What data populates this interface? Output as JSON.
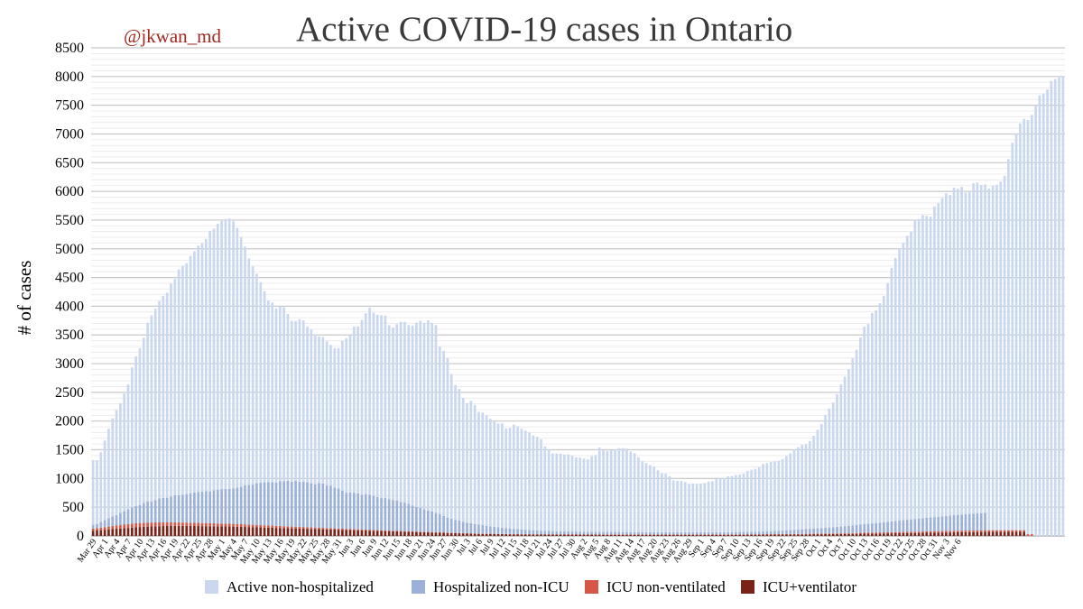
{
  "handle": "@jkwan_md",
  "chart_data": {
    "type": "bar",
    "stacked": true,
    "title": "Active COVID-19 cases in Ontario",
    "ylabel": "# of cases",
    "xlabel": "",
    "ylim": [
      0,
      8500
    ],
    "yticks": [
      0,
      500,
      1000,
      1500,
      2000,
      2500,
      3000,
      3500,
      4000,
      4500,
      5000,
      5500,
      6000,
      6500,
      7000,
      7500,
      8000,
      8500
    ],
    "grid": true,
    "legend_position": "bottom",
    "x_start": "Mar 29",
    "x_end": "Nov 6",
    "x_tick_labels": [
      "Mar 29",
      "Apr 1",
      "Apr 4",
      "Apr 7",
      "Apr 10",
      "Apr 13",
      "Apr 16",
      "Apr 19",
      "Apr 22",
      "Apr 25",
      "Apr 28",
      "May 1",
      "May 4",
      "May 7",
      "May 10",
      "May 13",
      "May 16",
      "May 19",
      "May 22",
      "May 25",
      "May 28",
      "May 31",
      "Jun 3",
      "Jun 6",
      "Jun 9",
      "Jun 12",
      "Jun 15",
      "Jun 18",
      "Jun 21",
      "Jun 24",
      "Jun 27",
      "Jun 30",
      "Jul 3",
      "Jul 6",
      "Jul 9",
      "Jul 12",
      "Jul 15",
      "Jul 18",
      "Jul 21",
      "Jul 24",
      "Jul 27",
      "Jul 30",
      "Aug 2",
      "Aug 5",
      "Aug 8",
      "Aug 11",
      "Aug 14",
      "Aug 17",
      "Aug 20",
      "Aug 23",
      "Aug 26",
      "Aug 29",
      "Sep 1",
      "Sep 4",
      "Sep 7",
      "Sep 10",
      "Sep 13",
      "Sep 16",
      "Sep 19",
      "Sep 22",
      "Sep 25",
      "Sep 28",
      "Oct 1",
      "Oct 4",
      "Oct 7",
      "Oct 10",
      "Oct 13",
      "Oct 16",
      "Oct 19",
      "Oct 22",
      "Oct 25",
      "Oct 28",
      "Oct 31",
      "Nov 3",
      "Nov 6"
    ],
    "colors": {
      "Active non-hospitalized": "#c9d8ef",
      "Hospitalized non-ICU": "#9bb1da",
      "ICU non-ventilated": "#d65747",
      "ICU+ventilator": "#7b2218"
    },
    "series": [
      {
        "name": "Active non-hospitalized",
        "values": [
          1125,
          1115,
          1212,
          1384,
          1561,
          1707,
          1827,
          1906,
          2050,
          2172,
          2440,
          2603,
          2733,
          2877,
          3112,
          3244,
          3331,
          3435,
          3515,
          3571,
          3705,
          3766,
          3931,
          3983,
          4020,
          4131,
          4203,
          4288,
          4326,
          4393,
          4539,
          4554,
          4630,
          4669,
          4702,
          4706,
          4651,
          4519,
          4347,
          4156,
          3946,
          3801,
          3649,
          3491,
          3328,
          3163,
          3128,
          3037,
          3048,
          3032,
          2905,
          2800,
          2782,
          2833,
          2806,
          2708,
          2679,
          2616,
          2553,
          2550,
          2511,
          2448,
          2427,
          2442,
          2609,
          2687,
          2734,
          2891,
          2906,
          3045,
          3151,
          3262,
          3184,
          3174,
          3186,
          3177,
          3033,
          3003,
          3075,
          3141,
          3148,
          3115,
          3136,
          3210,
          3257,
          3242,
          3311,
          3285,
          3273,
          2919,
          2873,
          2774,
          2524,
          2349,
          2290,
          2157,
          2081,
          2132,
          2071,
          1963,
          1959,
          1923,
          1872,
          1829,
          1806,
          1816,
          1734,
          1753,
          1816,
          1792,
          1758,
          1728,
          1700,
          1652,
          1633,
          1593,
          1470,
          1424,
          1354,
          1354,
          1352,
          1338,
          1341,
          1320,
          1291,
          1288,
          1272,
          1258,
          1312,
          1331,
          1465,
          1420,
          1409,
          1423,
          1437,
          1457,
          1458,
          1450,
          1403,
          1371,
          1302,
          1235,
          1202,
          1167,
          1143,
          1080,
          1025,
          1017,
          972,
          905,
          895,
          894,
          876,
          840,
          847,
          842,
          844,
          857,
          882,
          889,
          919,
          942,
          940,
          971,
          975,
          994,
          1000,
          1012,
          1057,
          1076,
          1094,
          1120,
          1174,
          1186,
          1203,
          1209,
          1220,
          1243,
          1293,
          1340,
          1403,
          1436,
          1474,
          1478,
          1529,
          1617,
          1716,
          1813,
          1962,
          2071,
          2169,
          2309,
          2474,
          2603,
          2725,
          2908,
          3050,
          3259,
          3439,
          3479,
          3662,
          3703,
          3823,
          3939,
          4151,
          4413,
          4580,
          4745,
          4829,
          4947,
          5010,
          5212,
          5217,
          5277,
          5258,
          5237,
          5407,
          5459,
          5542,
          5619,
          5585,
          5705,
          5680,
          5706,
          5600,
          5603,
          5753,
          5760,
          5716,
          5722,
          5950,
          5999,
          6015,
          6070,
          6170,
          6463,
          6747,
          6908,
          7081,
          7164,
          7212,
          7303,
          7495,
          7673,
          7702,
          7775,
          7924,
          7957,
          7986,
          8008
        ]
      },
      {
        "name": "Hospitalized non-ICU",
        "values": [
          67,
          69,
          102,
          124,
          142,
          166,
          178,
          210,
          232,
          259,
          281,
          302,
          315,
          344,
          367,
          363,
          389,
          418,
          425,
          428,
          453,
          472,
          474,
          487,
          496,
          514,
          526,
          539,
          547,
          556,
          555,
          576,
          588,
          599,
          603,
          609,
          619,
          637,
          656,
          683,
          689,
          699,
          726,
          738,
          748,
          753,
          756,
          753,
          776,
          781,
          794,
          781,
          798,
          785,
          791,
          783,
          768,
          751,
          775,
          774,
          741,
          743,
          713,
          699,
          665,
          630,
          634,
          637,
          629,
          605,
          619,
          609,
          596,
          577,
          560,
          563,
          542,
          534,
          524,
          503,
          496,
          476,
          449,
          426,
          413,
          395,
          375,
          356,
          334,
          314,
          288,
          261,
          241,
          225,
          216,
          197,
          184,
          175,
          163,
          156,
          148,
          137,
          129,
          121,
          114,
          108,
          102,
          95,
          90,
          85,
          80,
          75,
          71,
          68,
          65,
          62,
          60,
          58,
          56,
          54,
          53,
          52,
          51,
          50,
          49,
          49,
          48,
          48,
          47,
          47,
          46,
          46,
          45,
          45,
          44,
          44,
          43,
          43,
          42,
          42,
          41,
          41,
          40,
          40,
          39,
          39,
          39,
          39,
          39,
          39,
          39,
          39,
          39,
          39,
          39,
          39,
          39,
          39,
          39,
          40,
          40,
          40,
          41,
          41,
          42,
          42,
          43,
          44,
          45,
          46,
          47,
          48,
          50,
          52,
          54,
          56,
          58,
          61,
          64,
          67,
          70,
          73,
          77,
          81,
          85,
          89,
          93,
          97,
          101,
          105,
          109,
          114,
          119,
          124,
          129,
          134,
          139,
          144,
          149,
          155,
          160,
          166,
          171,
          177,
          182,
          188,
          193,
          199,
          204,
          210,
          215,
          221,
          226,
          232,
          237,
          242,
          247,
          252,
          257,
          262,
          267,
          272,
          276,
          280,
          284,
          288,
          291,
          294,
          297,
          300
        ]
      },
      {
        "name": "ICU non-ventilated",
        "values": [
          38,
          40,
          44,
          48,
          52,
          56,
          60,
          62,
          64,
          66,
          68,
          70,
          70,
          70,
          70,
          68,
          68,
          66,
          66,
          64,
          62,
          60,
          60,
          58,
          58,
          56,
          56,
          56,
          54,
          54,
          52,
          52,
          50,
          50,
          48,
          48,
          48,
          46,
          46,
          44,
          44,
          42,
          42,
          40,
          40,
          38,
          38,
          36,
          36,
          34,
          34,
          32,
          32,
          30,
          30,
          28,
          28,
          26,
          26,
          24,
          24,
          22,
          22,
          20,
          20,
          18,
          18,
          16,
          16,
          15,
          15,
          14,
          14,
          13,
          13,
          12,
          12,
          11,
          11,
          10,
          10,
          10,
          9,
          9,
          9,
          8,
          8,
          8,
          7,
          7,
          7,
          7,
          6,
          6,
          6,
          6,
          6,
          5,
          5,
          5,
          5,
          5,
          5,
          5,
          4,
          4,
          4,
          4,
          4,
          4,
          4,
          4,
          4,
          4,
          4,
          4,
          4,
          4,
          4,
          4,
          4,
          4,
          4,
          4,
          4,
          4,
          4,
          4,
          4,
          4,
          4,
          4,
          4,
          4,
          4,
          4,
          4,
          4,
          4,
          4,
          4,
          4,
          4,
          4,
          4,
          4,
          4,
          4,
          4,
          4,
          4,
          4,
          4,
          4,
          4,
          4,
          4,
          4,
          4,
          4,
          4,
          4,
          4,
          4,
          4,
          4,
          4,
          5,
          5,
          5,
          5,
          5,
          5,
          6,
          6,
          6,
          6,
          7,
          7,
          7,
          8,
          8,
          8,
          9,
          9,
          9,
          10,
          10,
          11,
          11,
          12,
          12,
          13,
          13,
          14,
          14,
          15,
          15,
          16,
          16,
          17,
          17,
          18,
          18,
          19,
          19,
          20,
          20,
          21,
          21,
          22,
          22,
          23,
          23,
          24,
          24,
          25,
          25,
          26,
          26,
          27,
          27,
          28,
          28,
          29,
          29,
          30,
          30,
          30,
          30,
          30,
          30,
          30,
          30,
          30,
          30,
          30,
          30,
          30,
          30,
          30,
          30
        ]
      },
      {
        "name": "ICU+ventilator",
        "values": [
          90,
          95,
          100,
          105,
          112,
          118,
          125,
          130,
          135,
          140,
          145,
          150,
          155,
          160,
          162,
          165,
          168,
          170,
          172,
          173,
          174,
          175,
          175,
          175,
          175,
          174,
          173,
          172,
          171,
          170,
          169,
          168,
          167,
          166,
          165,
          164,
          162,
          160,
          158,
          156,
          154,
          152,
          150,
          148,
          146,
          144,
          142,
          140,
          138,
          136,
          134,
          132,
          130,
          128,
          126,
          124,
          122,
          120,
          118,
          116,
          114,
          112,
          110,
          108,
          106,
          104,
          102,
          100,
          98,
          96,
          94,
          92,
          90,
          88,
          86,
          84,
          82,
          80,
          78,
          76,
          74,
          72,
          70,
          68,
          66,
          64,
          62,
          60,
          58,
          56,
          54,
          52,
          50,
          48,
          46,
          44,
          42,
          40,
          38,
          37,
          36,
          35,
          34,
          33,
          32,
          31,
          30,
          29,
          28,
          28,
          27,
          27,
          26,
          26,
          25,
          25,
          25,
          25,
          25,
          24,
          24,
          24,
          24,
          24,
          24,
          23,
          23,
          23,
          23,
          23,
          23,
          22,
          22,
          22,
          22,
          22,
          22,
          22,
          22,
          22,
          22,
          22,
          22,
          22,
          22,
          22,
          22,
          22,
          22,
          22,
          22,
          22,
          22,
          22,
          22,
          22,
          22,
          22,
          22,
          22,
          22,
          22,
          22,
          22,
          22,
          22,
          22,
          22,
          23,
          23,
          23,
          23,
          24,
          24,
          24,
          25,
          25,
          25,
          26,
          26,
          27,
          27,
          28,
          28,
          29,
          29,
          30,
          30,
          31,
          31,
          32,
          32,
          33,
          34,
          35,
          36,
          37,
          38,
          39,
          40,
          41,
          42,
          43,
          44,
          45,
          46,
          47,
          48,
          49,
          50,
          51,
          52,
          53,
          54,
          55,
          56,
          57,
          58,
          59,
          60,
          61,
          62,
          63,
          64,
          65,
          66,
          67,
          68,
          69,
          70,
          70,
          70,
          70,
          70,
          70,
          70,
          70,
          70,
          70,
          70
        ]
      }
    ]
  }
}
